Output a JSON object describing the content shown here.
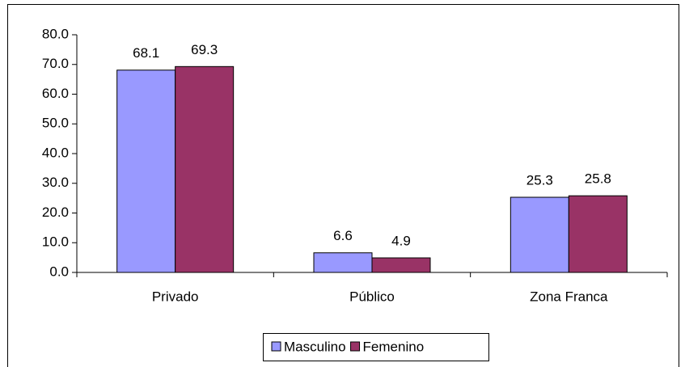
{
  "chart_data": {
    "type": "bar",
    "categories": [
      "Privado",
      "Público",
      "Zona Franca"
    ],
    "series": [
      {
        "name": "Masculino",
        "color": "#9999ff",
        "values": [
          68.1,
          6.6,
          25.3
        ]
      },
      {
        "name": "Femenino",
        "color": "#993366",
        "values": [
          69.3,
          4.9,
          25.8
        ]
      }
    ],
    "ylim": [
      0,
      80
    ],
    "yticks": [
      {
        "value": 0,
        "label": "0.0"
      },
      {
        "value": 10,
        "label": "10.0"
      },
      {
        "value": 20,
        "label": "20.0"
      },
      {
        "value": 30,
        "label": "30.0"
      },
      {
        "value": 40,
        "label": "40.0"
      },
      {
        "value": 50,
        "label": "50.0"
      },
      {
        "value": 60,
        "label": "60.0"
      },
      {
        "value": 70,
        "label": "70.0"
      },
      {
        "value": 80,
        "label": "80.0"
      }
    ],
    "legend": "bottom"
  }
}
